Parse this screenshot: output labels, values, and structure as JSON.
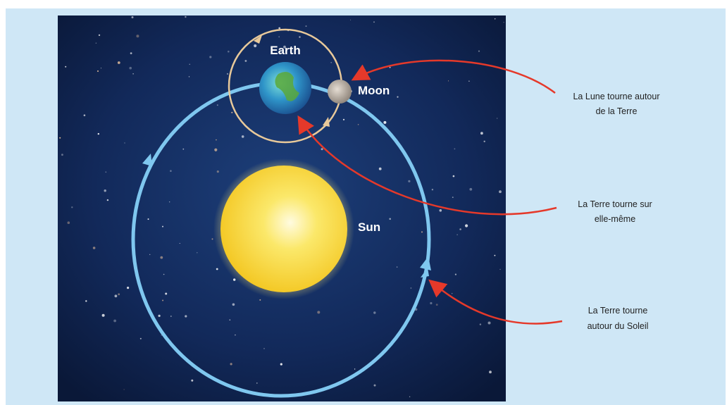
{
  "diagram": {
    "labels": {
      "earth": "Earth",
      "moon": "Moon",
      "sun": "Sun"
    },
    "annotations": [
      {
        "lines": [
          "La Lune tourne autour",
          "de la Terre"
        ]
      },
      {
        "lines": [
          "La Terre tourne sur",
          "elle-même"
        ]
      },
      {
        "lines": [
          "La Terre tourne",
          "autour du Soleil"
        ]
      }
    ]
  }
}
